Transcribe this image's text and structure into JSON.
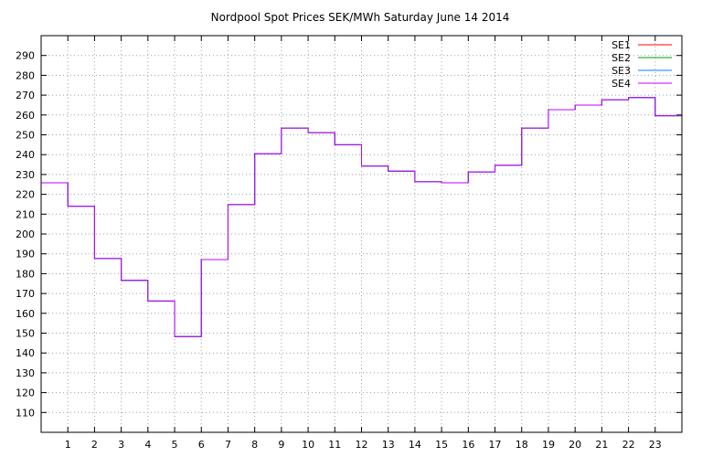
{
  "chart_data": {
    "type": "line",
    "title": "Nordpool Spot Prices SEK/MWh Saturday June 14 2014",
    "xlabel": "",
    "ylabel": "",
    "xlim": [
      0,
      24
    ],
    "ylim": [
      100,
      300
    ],
    "grid": true,
    "legend_position": "top-right",
    "step": true,
    "x_ticks": [
      1,
      2,
      3,
      4,
      5,
      6,
      7,
      8,
      9,
      10,
      11,
      12,
      13,
      14,
      15,
      16,
      17,
      18,
      19,
      20,
      21,
      22,
      23
    ],
    "y_ticks": [
      110,
      120,
      130,
      140,
      150,
      160,
      170,
      180,
      190,
      200,
      210,
      220,
      230,
      240,
      250,
      260,
      270,
      280,
      290
    ],
    "x": [
      0,
      1,
      2,
      3,
      4,
      5,
      6,
      7,
      8,
      9,
      10,
      11,
      12,
      13,
      14,
      15,
      16,
      17,
      18,
      19,
      20,
      21,
      22,
      23
    ],
    "series": [
      {
        "name": "SE1",
        "color": "#ff0000",
        "values": [
          225.8,
          214.0,
          187.6,
          176.6,
          166.2,
          148.3,
          187.1,
          214.8,
          240.5,
          253.4,
          251.1,
          245.0,
          234.3,
          231.7,
          226.3,
          225.8,
          231.3,
          234.6,
          253.4,
          262.7,
          265.0,
          267.7,
          268.8,
          259.6
        ]
      },
      {
        "name": "SE2",
        "color": "#00a000",
        "values": [
          225.8,
          214.0,
          187.6,
          176.6,
          166.2,
          148.3,
          187.1,
          214.8,
          240.5,
          253.4,
          251.1,
          245.0,
          234.3,
          231.7,
          226.3,
          225.8,
          231.3,
          234.6,
          253.4,
          262.7,
          265.0,
          267.7,
          268.8,
          259.6
        ]
      },
      {
        "name": "SE3",
        "color": "#0080ff",
        "values": [
          225.8,
          214.0,
          187.6,
          176.6,
          166.2,
          148.3,
          187.1,
          214.8,
          240.5,
          253.4,
          251.1,
          245.0,
          234.3,
          231.7,
          226.3,
          225.8,
          231.3,
          234.6,
          253.4,
          262.7,
          265.0,
          267.7,
          268.8,
          259.6
        ]
      },
      {
        "name": "SE4",
        "color": "#c000ff",
        "values": [
          225.8,
          214.0,
          187.6,
          176.6,
          166.2,
          148.3,
          187.1,
          214.8,
          240.5,
          253.4,
          251.1,
          245.0,
          234.3,
          231.7,
          226.3,
          225.8,
          231.3,
          234.6,
          253.4,
          262.7,
          265.0,
          267.7,
          268.8,
          259.6
        ]
      }
    ]
  }
}
